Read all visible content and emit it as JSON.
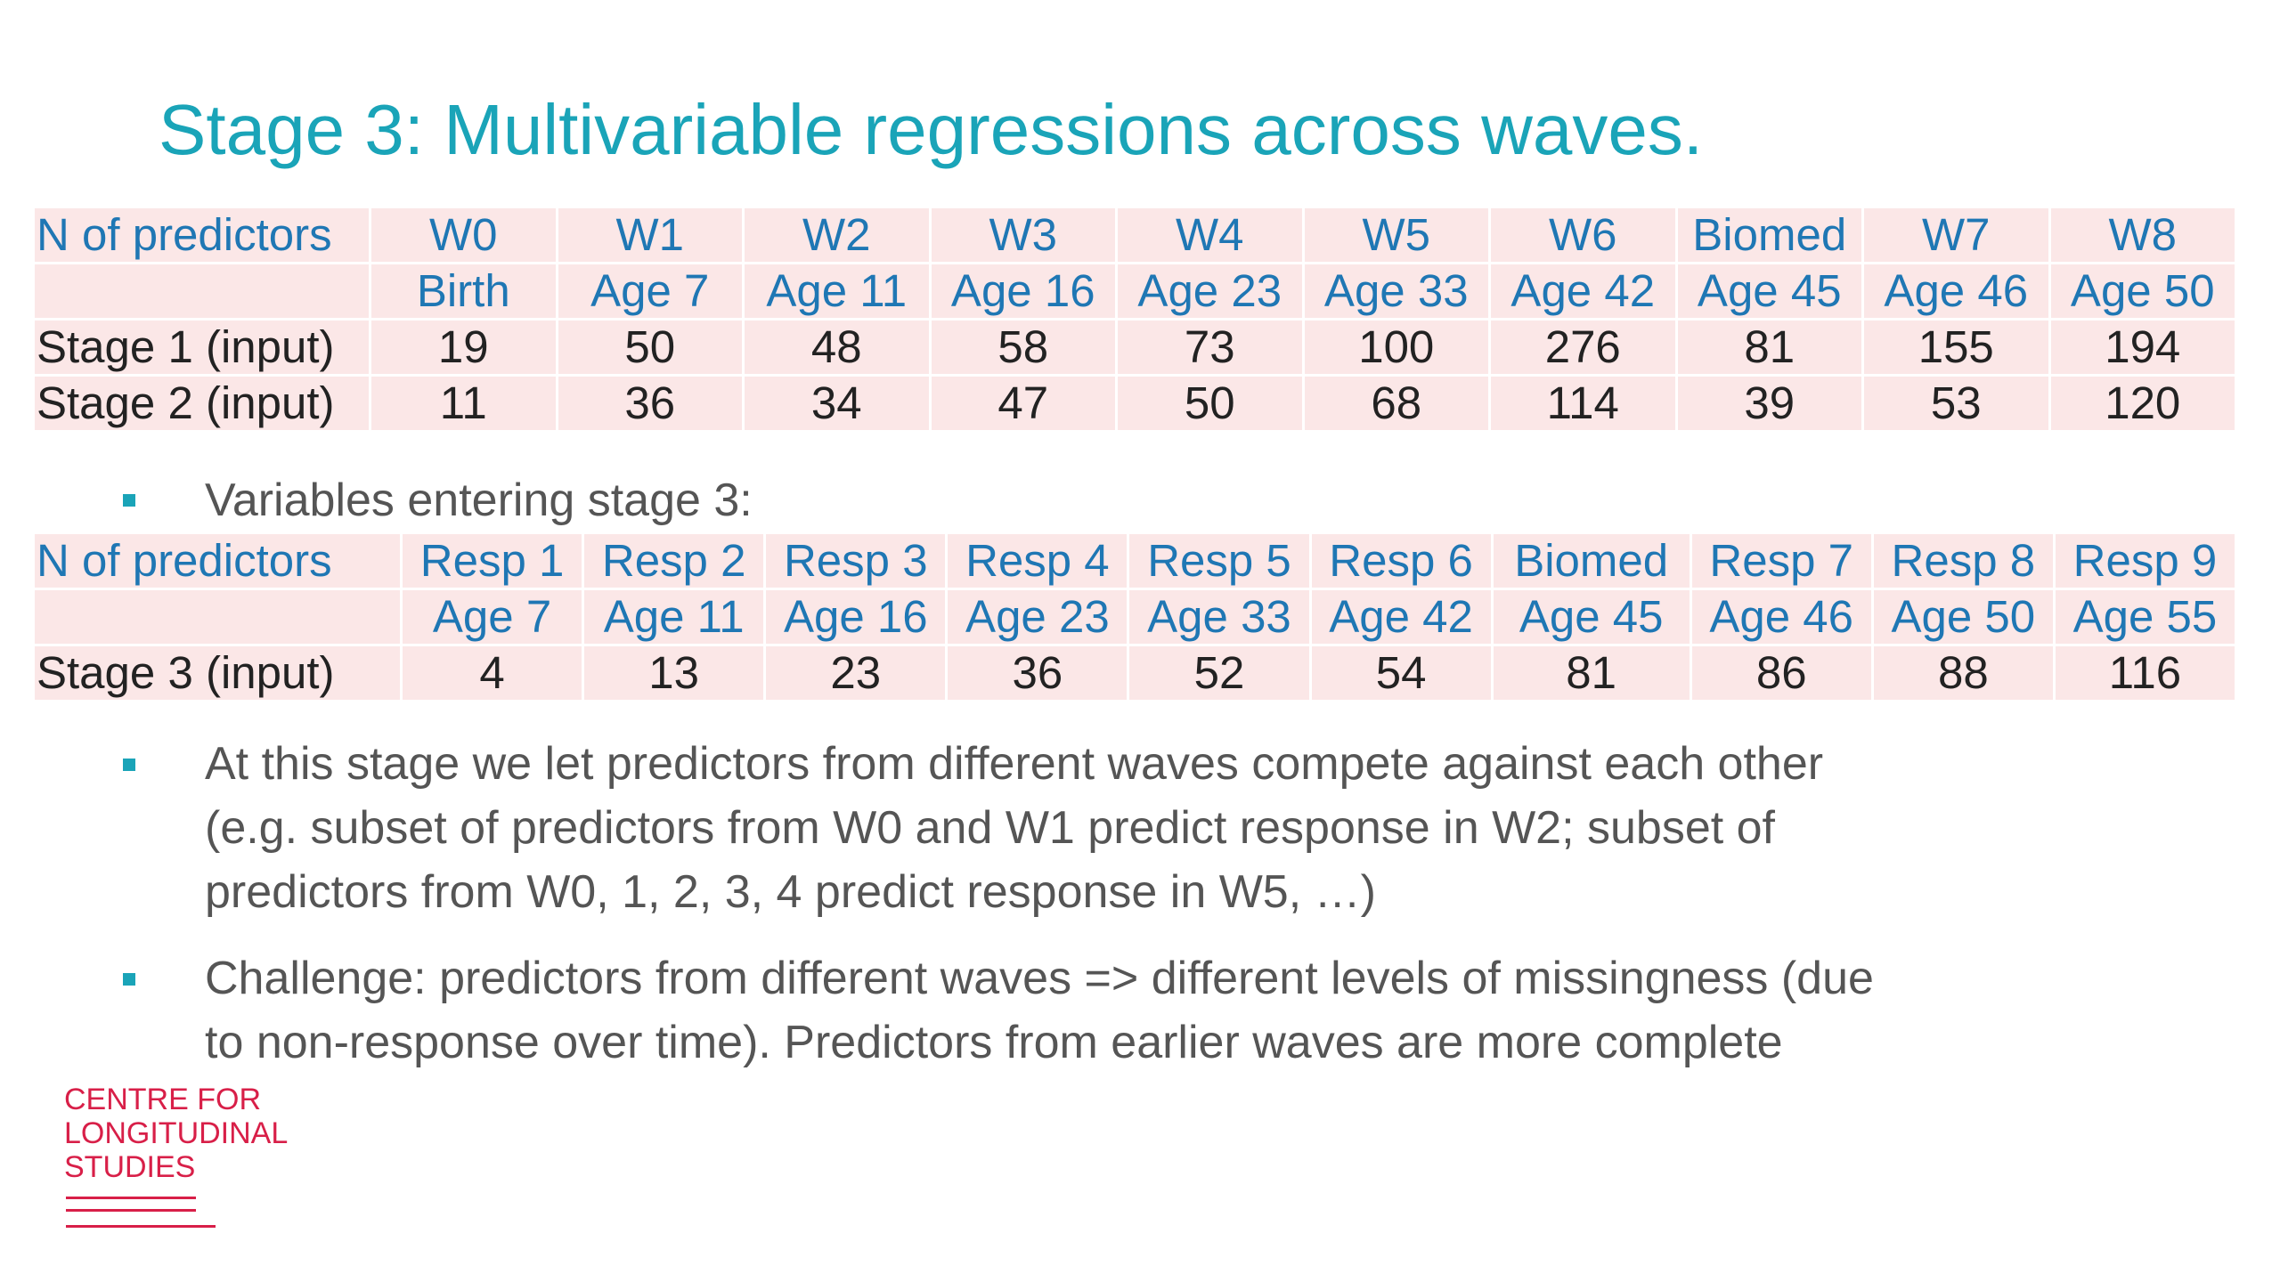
{
  "title": "Stage 3: Multivariable regressions across waves.",
  "table1": {
    "header_label": "N of predictors",
    "columns": [
      "W0",
      "W1",
      "W2",
      "W3",
      "W4",
      "W5",
      "W6",
      "Biomed",
      "W7",
      "W8"
    ],
    "subheaders": [
      "Birth",
      "Age 7",
      "Age 11",
      "Age 16",
      "Age 23",
      "Age 33",
      "Age 42",
      "Age 45",
      "Age 46",
      "Age 50"
    ],
    "rows": [
      {
        "label": "Stage 1 (input)",
        "values": [
          "19",
          "50",
          "48",
          "58",
          "73",
          "100",
          "276",
          "81",
          "155",
          "194"
        ]
      },
      {
        "label": "Stage 2 (input)",
        "values": [
          "11",
          "36",
          "34",
          "47",
          "50",
          "68",
          "114",
          "39",
          "53",
          "120"
        ]
      }
    ]
  },
  "bullet1": "Variables entering stage 3:",
  "table2": {
    "header_label": "N of predictors",
    "columns": [
      "Resp 1",
      "Resp 2",
      "Resp 3",
      "Resp 4",
      "Resp 5",
      "Resp 6",
      "Biomed",
      "Resp 7",
      "Resp 8",
      "Resp 9"
    ],
    "subheaders": [
      "Age 7",
      "Age 11",
      "Age 16",
      "Age 23",
      "Age 33",
      "Age 42",
      "Age 45",
      "Age 46",
      "Age 50",
      "Age 55"
    ],
    "rows": [
      {
        "label": "Stage 3 (input)",
        "values": [
          "4",
          "13",
          "23",
          "36",
          "52",
          "54",
          "81",
          "86",
          "88",
          "116"
        ]
      }
    ]
  },
  "bullet2": {
    "lines": [
      "At this stage we let predictors from different waves compete against each other",
      "(e.g. subset of predictors from W0 and W1 predict response in W2; subset of",
      "predictors from W0, 1, 2, 3, 4 predict response in W5, …)"
    ]
  },
  "bullet3": {
    "lines": [
      "Challenge: predictors from different waves => different levels of missingness (due",
      "to non-response over time). Predictors from earlier waves are more complete"
    ]
  },
  "logo": {
    "lines": [
      "CENTRE FOR",
      "LONGITUDINAL",
      "STUDIES"
    ],
    "color": "#d81f48"
  },
  "colors": {
    "title": "#1aa4b8",
    "header_text": "#1f77b4",
    "cell_bg": "#fbe7e7",
    "bullet": "#1aa4b8"
  }
}
